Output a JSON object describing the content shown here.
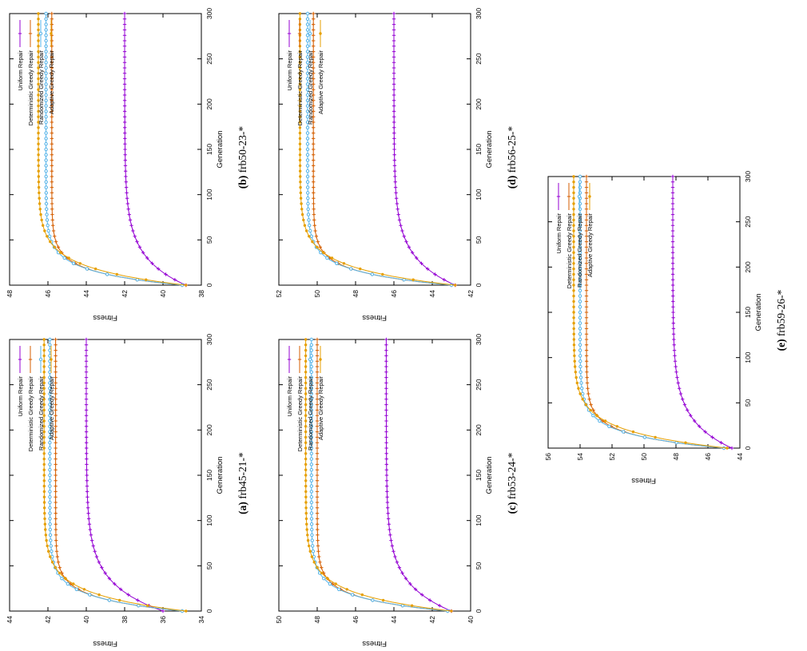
{
  "page": {
    "background": "#ffffff"
  },
  "legend": {
    "labels": [
      "Uniform Repair",
      "Deterministic Greedy Repair",
      "Randomized Greedy Repair",
      "Adaptive Greedy Repair"
    ],
    "position": "top-right"
  },
  "colors": {
    "uniform": "#9400D3",
    "deterministic": "#D55E00",
    "randomized": "#56B4E9",
    "adaptive": "#E69F00"
  },
  "chart_data": [
    {
      "id": "a",
      "type": "line",
      "caption_letter": "(a)",
      "caption_name": "frb45-21-*",
      "xlabel": "Generation",
      "ylabel": "Fitness",
      "xlim": [
        0,
        300
      ],
      "xticks": [
        0,
        50,
        100,
        150,
        200,
        250,
        300
      ],
      "ylim": [
        34,
        44
      ],
      "yticks": [
        34,
        36,
        38,
        40,
        42,
        44
      ],
      "grid": false,
      "legend_position": "top-right",
      "x_samples": [
        0,
        10,
        20,
        30,
        50,
        75,
        100,
        150,
        200,
        250,
        300
      ],
      "series": [
        {
          "name": "Uniform Repair",
          "color": "#9400D3",
          "marker": "plus",
          "start": 36.0,
          "final": 40.0,
          "tau": 30,
          "values": [
            36.0,
            37.1,
            38.0,
            38.5,
            39.2,
            39.7,
            39.9,
            40.0,
            40.0,
            40.0,
            40.0
          ]
        },
        {
          "name": "Deterministic Greedy Repair",
          "color": "#D55E00",
          "marker": "plus",
          "start": 35.0,
          "final": 41.6,
          "tau": 14,
          "values": [
            35.0,
            38.4,
            40.0,
            40.8,
            41.4,
            41.6,
            41.6,
            41.6,
            41.6,
            41.6,
            41.6
          ]
        },
        {
          "name": "Randomized Greedy Repair",
          "color": "#56B4E9",
          "marker": "circle-open",
          "start": 35.0,
          "final": 41.9,
          "tau": 15,
          "values": [
            35.0,
            38.4,
            40.1,
            41.0,
            41.7,
            41.9,
            41.9,
            41.9,
            41.9,
            41.9,
            41.9
          ]
        },
        {
          "name": "Adaptive Greedy Repair",
          "color": "#E69F00",
          "marker": "circle-filled",
          "start": 34.8,
          "final": 42.2,
          "tau": 19,
          "values": [
            34.8,
            37.8,
            39.6,
            40.7,
            41.7,
            42.1,
            42.2,
            42.2,
            42.2,
            42.2,
            42.2
          ]
        }
      ]
    },
    {
      "id": "b",
      "type": "line",
      "caption_letter": "(b)",
      "caption_name": "frb50-23-*",
      "xlabel": "Generation",
      "ylabel": "Fitness",
      "xlim": [
        0,
        300
      ],
      "xticks": [
        0,
        50,
        100,
        150,
        200,
        250,
        300
      ],
      "ylim": [
        38,
        48
      ],
      "yticks": [
        38,
        40,
        42,
        44,
        46,
        48
      ],
      "grid": false,
      "legend_position": "top-right",
      "x_samples": [
        0,
        10,
        20,
        30,
        50,
        75,
        100,
        150,
        200,
        250,
        300
      ],
      "series": [
        {
          "name": "Uniform Repair",
          "color": "#9400D3",
          "marker": "plus",
          "start": 38.8,
          "final": 42.0,
          "tau": 30,
          "values": [
            38.8,
            39.7,
            40.4,
            40.8,
            41.4,
            41.7,
            41.9,
            42.0,
            42.0,
            42.0,
            42.0
          ]
        },
        {
          "name": "Deterministic Greedy Repair",
          "color": "#D55E00",
          "marker": "plus",
          "start": 39.0,
          "final": 45.8,
          "tau": 14,
          "values": [
            39.0,
            42.5,
            44.2,
            45.0,
            45.6,
            45.8,
            45.8,
            45.8,
            45.8,
            45.8,
            45.8
          ]
        },
        {
          "name": "Randomized Greedy Repair",
          "color": "#56B4E9",
          "marker": "circle-open",
          "start": 39.0,
          "final": 46.1,
          "tau": 15,
          "values": [
            39.0,
            42.5,
            44.2,
            45.1,
            45.8,
            46.0,
            46.1,
            46.1,
            46.1,
            46.1,
            46.1
          ]
        },
        {
          "name": "Adaptive Greedy Repair",
          "color": "#E69F00",
          "marker": "circle-filled",
          "start": 38.8,
          "final": 46.5,
          "tau": 19,
          "values": [
            38.8,
            41.9,
            43.8,
            44.9,
            45.9,
            46.4,
            46.5,
            46.5,
            46.5,
            46.5,
            46.5
          ]
        }
      ]
    },
    {
      "id": "c",
      "type": "line",
      "caption_letter": "(c)",
      "caption_name": "frb53-24-*",
      "xlabel": "Generation",
      "ylabel": "Fitness",
      "xlim": [
        0,
        300
      ],
      "xticks": [
        0,
        50,
        100,
        150,
        200,
        250,
        300
      ],
      "ylim": [
        40,
        50
      ],
      "yticks": [
        40,
        42,
        44,
        46,
        48,
        50
      ],
      "grid": false,
      "legend_position": "top-right",
      "x_samples": [
        0,
        10,
        20,
        30,
        50,
        75,
        100,
        150,
        200,
        250,
        300
      ],
      "series": [
        {
          "name": "Uniform Repair",
          "color": "#9400D3",
          "marker": "plus",
          "start": 41.0,
          "final": 44.4,
          "tau": 30,
          "values": [
            41.0,
            42.0,
            42.7,
            43.1,
            43.8,
            44.1,
            44.3,
            44.4,
            44.4,
            44.4,
            44.4
          ]
        },
        {
          "name": "Deterministic Greedy Repair",
          "color": "#D55E00",
          "marker": "plus",
          "start": 41.2,
          "final": 48.0,
          "tau": 14,
          "values": [
            41.2,
            44.7,
            46.4,
            47.2,
            47.8,
            48.0,
            48.0,
            48.0,
            48.0,
            48.0,
            48.0
          ]
        },
        {
          "name": "Randomized Greedy Repair",
          "color": "#56B4E9",
          "marker": "circle-open",
          "start": 41.2,
          "final": 48.3,
          "tau": 15,
          "values": [
            41.2,
            44.7,
            46.4,
            47.3,
            48.0,
            48.3,
            48.3,
            48.3,
            48.3,
            48.3,
            48.3
          ]
        },
        {
          "name": "Adaptive Greedy Repair",
          "color": "#E69F00",
          "marker": "circle-filled",
          "start": 41.0,
          "final": 48.6,
          "tau": 19,
          "values": [
            41.0,
            44.1,
            45.9,
            47.0,
            48.1,
            48.5,
            48.6,
            48.6,
            48.6,
            48.6,
            48.6
          ]
        }
      ]
    },
    {
      "id": "d",
      "type": "line",
      "caption_letter": "(d)",
      "caption_name": "frb56-25-*",
      "xlabel": "Generation",
      "ylabel": "Fitness",
      "xlim": [
        0,
        300
      ],
      "xticks": [
        0,
        50,
        100,
        150,
        200,
        250,
        300
      ],
      "ylim": [
        42,
        52
      ],
      "yticks": [
        42,
        44,
        46,
        48,
        50,
        52
      ],
      "grid": false,
      "legend_position": "top-right",
      "x_samples": [
        0,
        10,
        20,
        30,
        50,
        75,
        100,
        150,
        200,
        250,
        300
      ],
      "series": [
        {
          "name": "Uniform Repair",
          "color": "#9400D3",
          "marker": "plus",
          "start": 42.8,
          "final": 46.0,
          "tau": 30,
          "values": [
            42.8,
            43.7,
            44.4,
            44.8,
            45.4,
            45.7,
            45.9,
            46.0,
            46.0,
            46.0,
            46.0
          ]
        },
        {
          "name": "Deterministic Greedy Repair",
          "color": "#D55E00",
          "marker": "plus",
          "start": 43.0,
          "final": 50.2,
          "tau": 14,
          "values": [
            43.0,
            46.7,
            48.5,
            49.4,
            50.0,
            50.2,
            50.2,
            50.2,
            50.2,
            50.2,
            50.2
          ]
        },
        {
          "name": "Randomized Greedy Repair",
          "color": "#56B4E9",
          "marker": "circle-open",
          "start": 43.0,
          "final": 50.5,
          "tau": 15,
          "values": [
            43.0,
            46.6,
            48.5,
            49.5,
            50.2,
            50.4,
            50.5,
            50.5,
            50.5,
            50.5,
            50.5
          ]
        },
        {
          "name": "Adaptive Greedy Repair",
          "color": "#E69F00",
          "marker": "circle-filled",
          "start": 42.8,
          "final": 50.9,
          "tau": 19,
          "values": [
            42.8,
            46.1,
            48.1,
            49.2,
            50.3,
            50.7,
            50.9,
            50.9,
            50.9,
            50.9,
            50.9
          ]
        }
      ]
    },
    {
      "id": "e",
      "type": "line",
      "caption_letter": "(e)",
      "caption_name": "frb59-26-*",
      "xlabel": "Generation",
      "ylabel": "Fitness",
      "xlim": [
        0,
        300
      ],
      "xticks": [
        0,
        50,
        100,
        150,
        200,
        250,
        300
      ],
      "ylim": [
        44,
        56
      ],
      "yticks": [
        44,
        46,
        48,
        50,
        52,
        54,
        56
      ],
      "grid": false,
      "legend_position": "top-right",
      "x_samples": [
        0,
        10,
        20,
        30,
        50,
        75,
        100,
        150,
        200,
        250,
        300
      ],
      "series": [
        {
          "name": "Uniform Repair",
          "color": "#9400D3",
          "marker": "plus",
          "start": 44.5,
          "final": 48.2,
          "tau": 30,
          "values": [
            44.5,
            45.5,
            46.3,
            46.8,
            47.5,
            47.9,
            48.1,
            48.2,
            48.2,
            48.2,
            48.2
          ]
        },
        {
          "name": "Deterministic Greedy Repair",
          "color": "#D55E00",
          "marker": "plus",
          "start": 45.0,
          "final": 53.6,
          "tau": 14,
          "values": [
            45.0,
            49.4,
            51.5,
            52.6,
            53.4,
            53.6,
            53.6,
            53.6,
            53.6,
            53.6,
            53.6
          ]
        },
        {
          "name": "Randomized Greedy Repair",
          "color": "#56B4E9",
          "marker": "circle-open",
          "start": 45.0,
          "final": 54.0,
          "tau": 15,
          "values": [
            45.0,
            49.4,
            51.6,
            52.8,
            53.7,
            53.9,
            54.0,
            54.0,
            54.0,
            54.0,
            54.0
          ]
        },
        {
          "name": "Adaptive Greedy Repair",
          "color": "#E69F00",
          "marker": "circle-filled",
          "start": 44.8,
          "final": 54.4,
          "tau": 19,
          "values": [
            44.8,
            48.7,
            51.0,
            52.4,
            53.7,
            54.2,
            54.3,
            54.4,
            54.4,
            54.4,
            54.4
          ]
        }
      ]
    }
  ]
}
